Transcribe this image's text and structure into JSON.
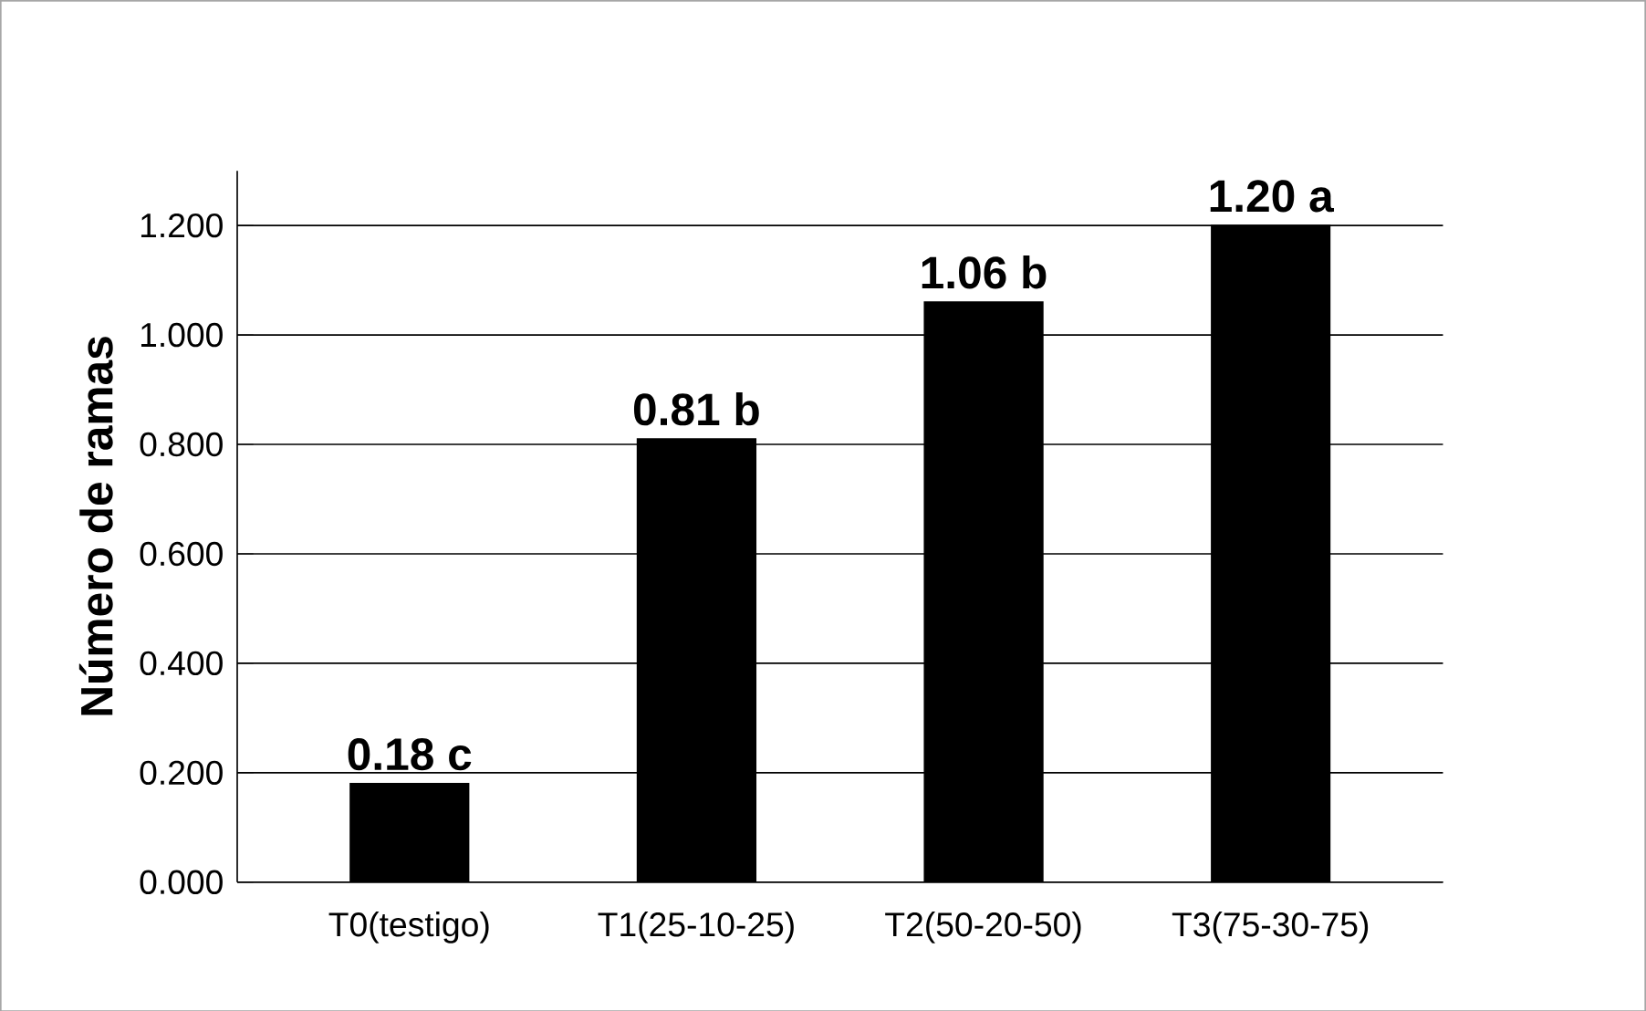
{
  "chart_data": {
    "type": "bar",
    "ylabel": "Número de ramas",
    "categories": [
      "T0(testigo)",
      "T1(25-10-25)",
      "T2(50-20-50)",
      "T3(75-30-75)"
    ],
    "values": [
      0.18,
      0.81,
      1.06,
      1.2
    ],
    "color": "#000000",
    "value_labels": [
      "0.18 c",
      "0.81 b",
      "1.06 b",
      "1.20 a"
    ],
    "ylim": [
      0,
      1.3
    ],
    "yticks": [
      {
        "value": 0,
        "label": "0.000"
      },
      {
        "value": 0.2,
        "label": "0.200"
      },
      {
        "value": 0.4,
        "label": "0.400"
      },
      {
        "value": 0.6,
        "label": "0.600"
      },
      {
        "value": 0.8,
        "label": "0.800"
      },
      {
        "value": 1.0,
        "label": "1.000"
      },
      {
        "value": 1.2,
        "label": "1.200"
      }
    ],
    "grid": "y"
  }
}
